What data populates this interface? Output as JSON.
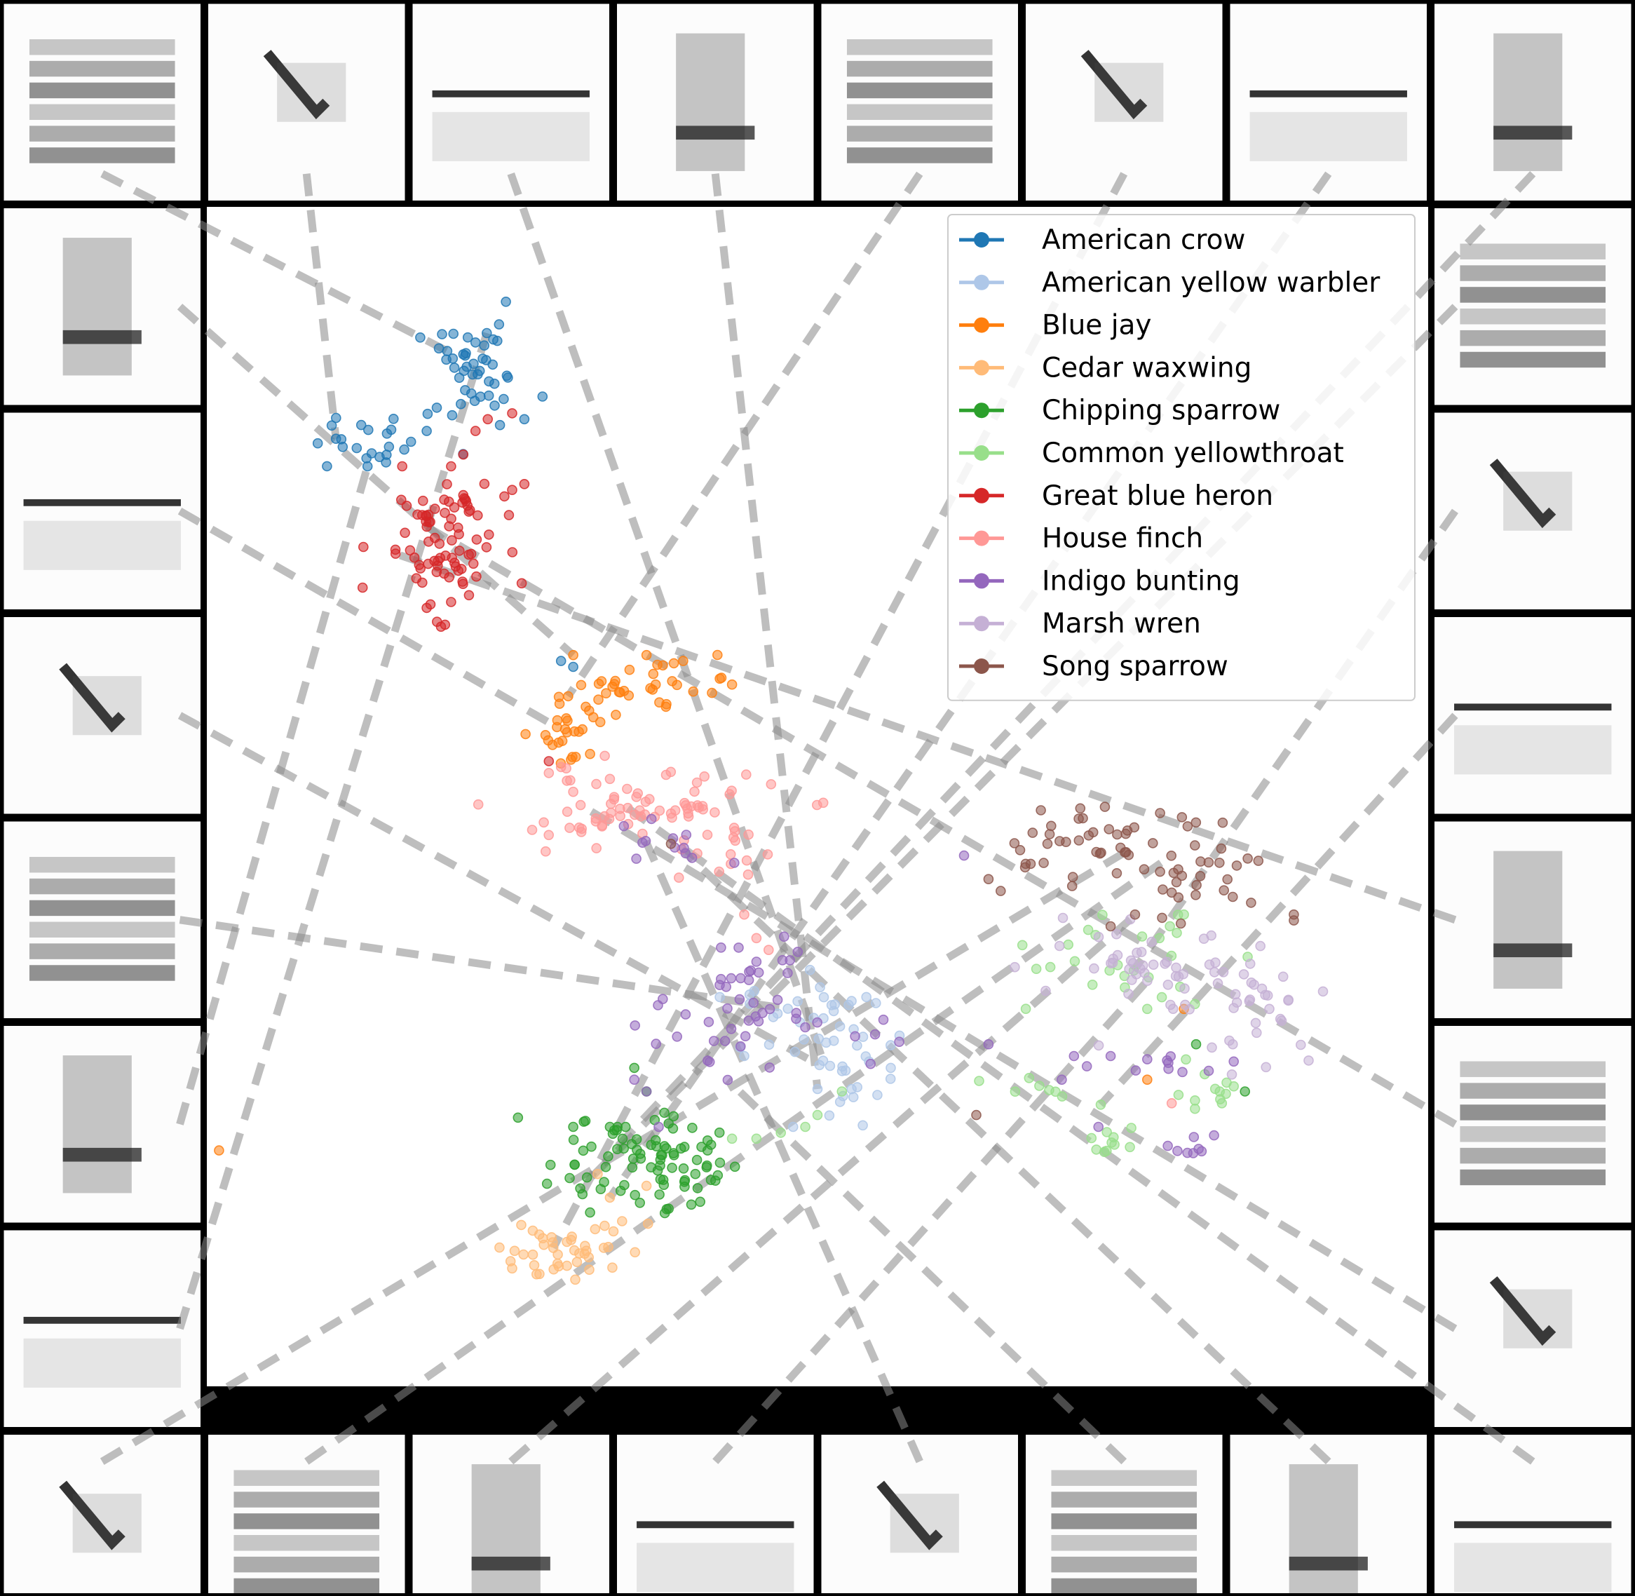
{
  "chart_data": {
    "type": "scatter",
    "title": "",
    "xlabel": "",
    "ylabel": "",
    "grid": false,
    "legend_placement": "top-right",
    "axes_visible": false,
    "xlim": [
      0,
      100
    ],
    "ylim": [
      0,
      100
    ],
    "border_thumbnails": {
      "count": 32,
      "content": "grayscale spectrogram thumbnails",
      "connector_style": "gray dashed lines to embedding points"
    },
    "series": [
      {
        "name": "American crow",
        "color": "#1f77b4",
        "clusters": [
          [
            22,
            86,
            2.5,
            2.0,
            40
          ],
          [
            14,
            80,
            3.0,
            1.2,
            25
          ]
        ],
        "points": [
          [
            19,
            88
          ],
          [
            21,
            87.5
          ],
          [
            22,
            88.5
          ],
          [
            18,
            81
          ],
          [
            24,
            81.5
          ],
          [
            26,
            82
          ],
          [
            30,
            61
          ],
          [
            29,
            61.5
          ]
        ]
      },
      {
        "name": "American yellow warbler",
        "color": "#aec7e8",
        "clusters": [
          [
            50,
            30,
            3.0,
            2.5,
            35
          ],
          [
            52,
            26,
            1.5,
            2.5,
            15
          ]
        ],
        "points": [
          [
            56,
            27
          ],
          [
            42,
            33
          ],
          [
            48,
            22
          ],
          [
            54,
            33
          ],
          [
            44,
            28
          ]
        ]
      },
      {
        "name": "Blue jay",
        "color": "#ff7f0e",
        "clusters": [
          [
            30,
            55.5,
            1.2,
            1.5,
            25
          ],
          [
            34,
            59,
            2.5,
            1.0,
            20
          ],
          [
            39,
            60,
            2.0,
            1.0,
            12
          ]
        ],
        "points": [
          [
            42,
            60
          ],
          [
            43,
            59.5
          ],
          [
            39,
            61.5
          ],
          [
            36,
            62
          ],
          [
            30,
            62
          ],
          [
            80,
            32
          ],
          [
            77,
            26
          ],
          [
            1,
            20
          ]
        ]
      },
      {
        "name": "Cedar waxwing",
        "color": "#ffbb78",
        "clusters": [
          [
            30,
            12,
            3.0,
            1.5,
            40
          ]
        ],
        "points": [
          [
            33,
            16
          ],
          [
            32,
            18
          ],
          [
            25,
            10
          ],
          [
            27,
            9.5
          ],
          [
            34,
            14
          ],
          [
            36,
            17
          ]
        ]
      },
      {
        "name": "Chipping sparrow",
        "color": "#2ca02c",
        "clusters": [
          [
            35,
            19.5,
            3.5,
            2.0,
            70
          ],
          [
            38,
            17,
            1.5,
            1.5,
            15
          ]
        ],
        "points": [
          [
            30,
            22
          ],
          [
            31,
            22.5
          ],
          [
            33,
            22
          ],
          [
            41,
            20
          ],
          [
            40,
            18
          ],
          [
            36,
            25
          ],
          [
            35,
            27
          ],
          [
            85,
            25
          ],
          [
            81,
            29
          ]
        ]
      },
      {
        "name": "Common yellowthroat",
        "color": "#98df8a",
        "clusters": [
          [
            74,
            36,
            5.0,
            2.0,
            25
          ],
          [
            82,
            25,
            1.5,
            1.0,
            12
          ],
          [
            74,
            20.5,
            1.5,
            0.6,
            10
          ],
          [
            68,
            25,
            2.0,
            1.0,
            8
          ]
        ],
        "points": [
          [
            43,
            21
          ],
          [
            45,
            21
          ],
          [
            47,
            21.5
          ],
          [
            49,
            22
          ],
          [
            50,
            23
          ],
          [
            52,
            25
          ],
          [
            77,
            32
          ],
          [
            80,
            40
          ],
          [
            78,
            38
          ]
        ]
      },
      {
        "name": "Great blue heron",
        "color": "#d62728",
        "clusters": [
          [
            19,
            71,
            2.5,
            2.5,
            60
          ],
          [
            20,
            74,
            1.5,
            1.5,
            20
          ]
        ],
        "points": [
          [
            22,
            81
          ],
          [
            23,
            82
          ],
          [
            25,
            82.5
          ],
          [
            25,
            76
          ],
          [
            26,
            76.5
          ],
          [
            20,
            78
          ],
          [
            21,
            79
          ],
          [
            16,
            78
          ],
          [
            18,
            66
          ],
          [
            20,
            66.5
          ],
          [
            28,
            53
          ]
        ]
      },
      {
        "name": "House finch",
        "color": "#ff9896",
        "clusters": [
          [
            35,
            49,
            6.0,
            1.5,
            70
          ],
          [
            42,
            45,
            1.5,
            1.5,
            15
          ]
        ],
        "points": [
          [
            28,
            52
          ],
          [
            29,
            52.5
          ],
          [
            33,
            51.5
          ],
          [
            45,
            38
          ],
          [
            46,
            37
          ],
          [
            44,
            40
          ],
          [
            79,
            24
          ]
        ]
      },
      {
        "name": "Indigo bunting",
        "color": "#9467bd",
        "clusters": [
          [
            45,
            35,
            2.0,
            3.0,
            25
          ],
          [
            46,
            30,
            6.0,
            1.5,
            25
          ],
          [
            39,
            46,
            3.5,
            1.0,
            12
          ],
          [
            78,
            27.5,
            4.0,
            1.0,
            10
          ],
          [
            81,
            20,
            1.0,
            1.0,
            8
          ]
        ],
        "points": [
          [
            35,
            26
          ],
          [
            36,
            25
          ],
          [
            37,
            22
          ],
          [
            62,
            45
          ],
          [
            64,
            29
          ],
          [
            70,
            26
          ],
          [
            71,
            28
          ],
          [
            74,
            28
          ],
          [
            73,
            22
          ],
          [
            45,
            36
          ]
        ]
      },
      {
        "name": "Marsh wren",
        "color": "#c5b0d5",
        "clusters": [
          [
            79,
            34,
            6.0,
            2.0,
            45
          ],
          [
            86,
            30,
            2.0,
            2.0,
            15
          ],
          [
            75,
            36,
            2.0,
            0.8,
            12
          ]
        ],
        "points": [
          [
            84,
            29
          ],
          [
            88,
            31
          ],
          [
            87,
            32
          ]
        ]
      },
      {
        "name": "Song sparrow",
        "color": "#8c564b",
        "clusters": [
          [
            73,
            46,
            5.0,
            1.5,
            45
          ],
          [
            81,
            43,
            3.0,
            2.0,
            20
          ]
        ],
        "points": [
          [
            84,
            41.5
          ],
          [
            85.5,
            41
          ],
          [
            89,
            40
          ],
          [
            89,
            39.5
          ],
          [
            64,
            43
          ],
          [
            67,
            44
          ],
          [
            65,
            42
          ],
          [
            74,
            39
          ],
          [
            76,
            40
          ],
          [
            38,
            46
          ],
          [
            63,
            23
          ]
        ]
      }
    ]
  }
}
